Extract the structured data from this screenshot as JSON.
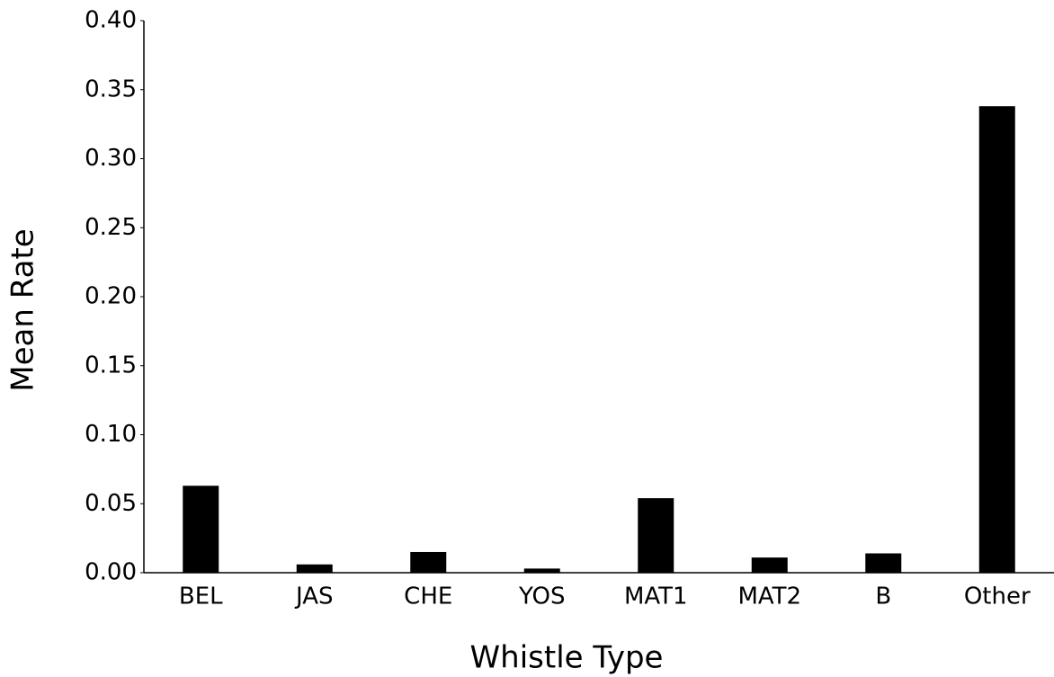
{
  "chart_data": {
    "type": "bar",
    "x_label": "Whistle Type",
    "y_label": "Mean Rate",
    "categories": [
      "BEL",
      "JAS",
      "CHE",
      "YOS",
      "MAT1",
      "MAT2",
      "B",
      "Other"
    ],
    "values": [
      0.063,
      0.006,
      0.015,
      0.003,
      0.054,
      0.011,
      0.014,
      0.338
    ],
    "color": "#000000",
    "ylim": [
      0,
      0.4
    ],
    "yticks": [
      {
        "value": 0,
        "label": "0.00"
      },
      {
        "value": 0.05,
        "label": "0.05"
      },
      {
        "value": 0.1,
        "label": "0.10"
      },
      {
        "value": 0.15,
        "label": "0.15"
      },
      {
        "value": 0.2,
        "label": "0.20"
      },
      {
        "value": 0.25,
        "label": "0.25"
      },
      {
        "value": 0.3,
        "label": "0.30"
      },
      {
        "value": 0.35,
        "label": "0.35"
      },
      {
        "value": 0.4,
        "label": "0.40"
      }
    ],
    "grid": false
  }
}
